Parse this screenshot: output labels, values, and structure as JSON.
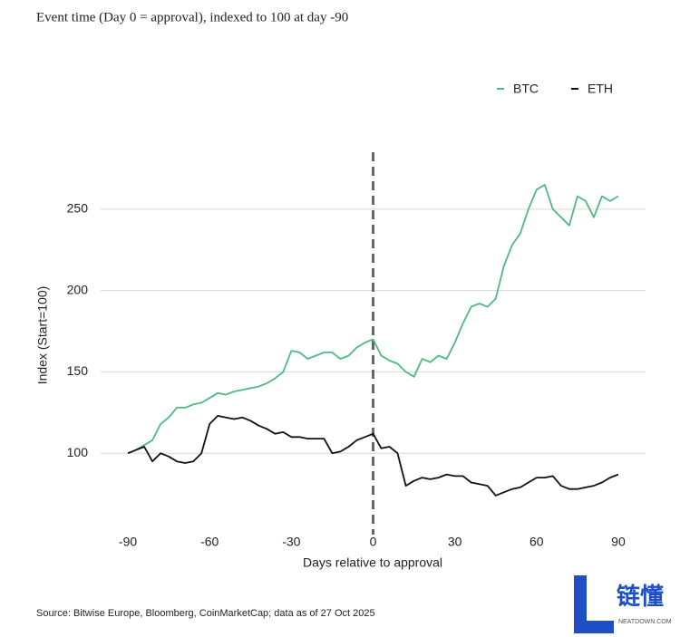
{
  "chart_data": {
    "type": "line",
    "title": "Event time (Day 0 = approval), indexed to 100 at day -90",
    "xlabel": "Days relative to approval",
    "ylabel": "Index (Start=100)",
    "source": "Source: Bitwise Europe, Bloomberg, CoinMarketCap; data as of 27 Oct 2025",
    "watermark": {
      "name": "链懂",
      "site": "NEATDOWN.COM"
    },
    "x": [
      -90,
      -87,
      -84,
      -81,
      -78,
      -75,
      -72,
      -69,
      -66,
      -63,
      -60,
      -57,
      -54,
      -51,
      -48,
      -45,
      -42,
      -39,
      -36,
      -33,
      -30,
      -27,
      -24,
      -21,
      -18,
      -15,
      -12,
      -9,
      -6,
      -3,
      0,
      3,
      6,
      9,
      12,
      15,
      18,
      21,
      24,
      27,
      30,
      33,
      36,
      39,
      42,
      45,
      48,
      51,
      54,
      57,
      60,
      63,
      66,
      69,
      72,
      75,
      78,
      81,
      84,
      87,
      90
    ],
    "series": [
      {
        "name": "BTC",
        "color": "#4cbb7f",
        "values": [
          100,
          102,
          105,
          108,
          118,
          122,
          128,
          128,
          130,
          131,
          134,
          137,
          136,
          138,
          139,
          140,
          141,
          143,
          146,
          150,
          163,
          162,
          158,
          160,
          162,
          162,
          158,
          160,
          165,
          168,
          170,
          160,
          157,
          155,
          150,
          147,
          158,
          156,
          160,
          158,
          168,
          180,
          190,
          192,
          190,
          195,
          215,
          228,
          235,
          250,
          262,
          265,
          250,
          245,
          240,
          258,
          255,
          245,
          258,
          255,
          258
        ]
      },
      {
        "name": "ETH",
        "color": "#111111",
        "values": [
          100,
          102,
          104,
          95,
          100,
          98,
          95,
          94,
          95,
          100,
          118,
          123,
          122,
          121,
          122,
          120,
          117,
          115,
          112,
          113,
          110,
          110,
          109,
          109,
          109,
          100,
          101,
          104,
          108,
          110,
          112,
          103,
          104,
          100,
          80,
          83,
          85,
          84,
          85,
          87,
          86,
          86,
          82,
          81,
          80,
          74,
          76,
          78,
          79,
          82,
          85,
          85,
          86,
          80,
          78,
          78,
          79,
          80,
          82,
          85,
          87
        ]
      }
    ],
    "xlim": [
      -100,
      100
    ],
    "xticks": [
      -90,
      -60,
      -30,
      0,
      30,
      60,
      90
    ],
    "ylim": [
      50,
      285
    ],
    "yticks": [
      100,
      150,
      200,
      250
    ],
    "grid": true,
    "vline": 0,
    "legend": "top-right"
  }
}
